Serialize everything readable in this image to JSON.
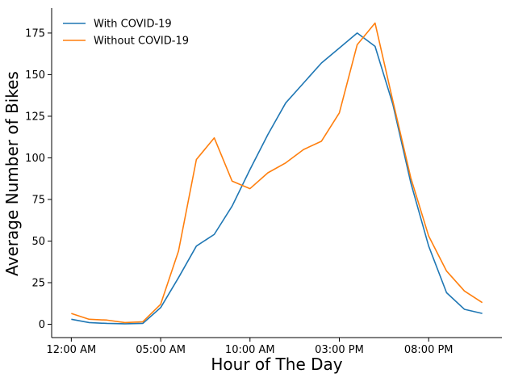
{
  "chart_data": {
    "type": "line",
    "xlabel": "Hour of The Day",
    "ylabel": "Average Number of Bikes",
    "x": [
      0,
      1,
      2,
      3,
      4,
      5,
      6,
      7,
      8,
      9,
      10,
      11,
      12,
      13,
      14,
      15,
      16,
      17,
      18,
      19,
      20,
      21,
      22,
      23
    ],
    "x_ticks": [
      {
        "value": 0,
        "label": "12:00 AM"
      },
      {
        "value": 5,
        "label": "05:00 AM"
      },
      {
        "value": 10,
        "label": "10:00 AM"
      },
      {
        "value": 15,
        "label": "03:00 PM"
      },
      {
        "value": 20,
        "label": "08:00 PM"
      }
    ],
    "y_ticks": [
      0,
      25,
      50,
      75,
      100,
      125,
      150,
      175
    ],
    "xlim": [
      -1.1,
      24.1
    ],
    "ylim": [
      -8,
      190
    ],
    "series": [
      {
        "name": "With COVID-19",
        "color": "#1f77b4",
        "values": [
          3,
          1,
          0.5,
          0.3,
          0.5,
          10,
          28,
          47,
          54,
          71,
          93,
          114,
          133,
          145,
          157,
          166,
          175,
          167,
          132,
          85,
          47,
          19,
          9,
          6.5
        ]
      },
      {
        "name": "Without COVID-19",
        "color": "#ff7f0e",
        "values": [
          6.5,
          3,
          2.5,
          1,
          1.5,
          12,
          44,
          99,
          112,
          86,
          81.5,
          91,
          97,
          105,
          110,
          127,
          168,
          181,
          134,
          88,
          53,
          32,
          20,
          13
        ]
      }
    ],
    "legend": "top-left",
    "grid": false
  }
}
